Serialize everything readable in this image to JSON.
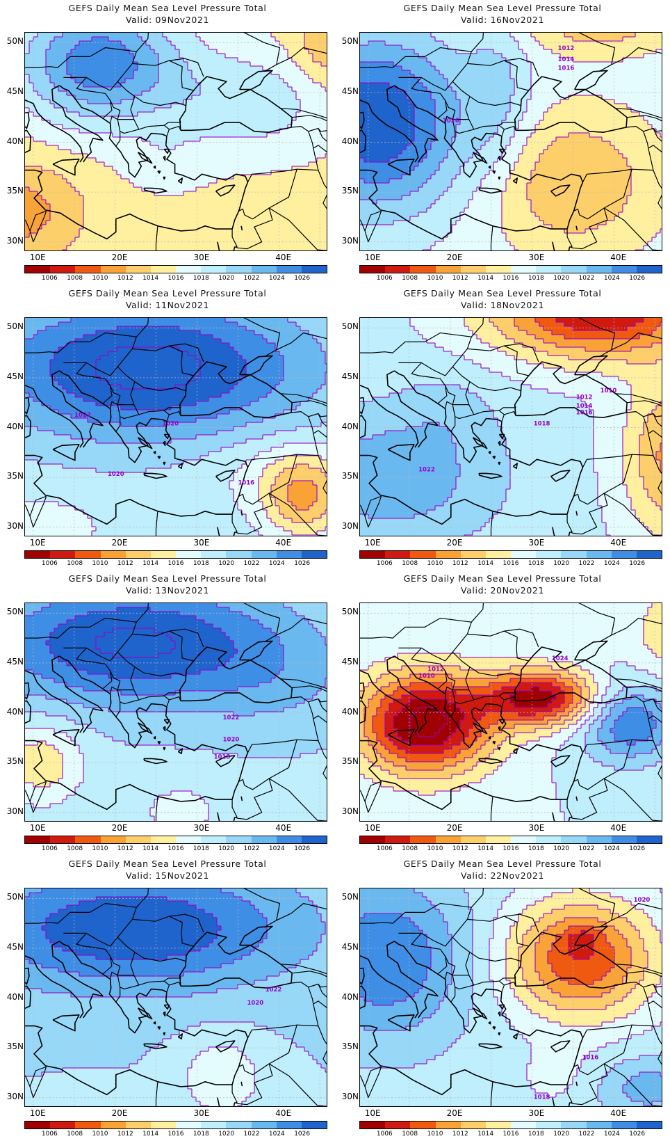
{
  "panels": [
    {
      "title": "GEFS Daily Mean Sea Level Pressure Total",
      "valid": "Valid: 09Nov2021",
      "field": "p09",
      "contour_labels": []
    },
    {
      "title": "GEFS Daily Mean Sea Level Pressure Total",
      "valid": "Valid: 16Nov2021",
      "field": "p16",
      "contour_labels": [
        "1012",
        "1014",
        "1016",
        "1026"
      ]
    },
    {
      "title": "GEFS Daily Mean Sea Level Pressure Total",
      "valid": "Valid: 11Nov2021",
      "field": "p11",
      "contour_labels": [
        "1022",
        "1020",
        "1020",
        "1016"
      ]
    },
    {
      "title": "GEFS Daily Mean Sea Level Pressure Total",
      "valid": "Valid: 18Nov2021",
      "field": "p18",
      "contour_labels": [
        "1010",
        "1012",
        "1014",
        "1016",
        "1018",
        "1022"
      ]
    },
    {
      "title": "GEFS Daily Mean Sea Level Pressure Total",
      "valid": "Valid: 13Nov2021",
      "field": "p13",
      "contour_labels": [
        "1022",
        "1020",
        "1018"
      ]
    },
    {
      "title": "GEFS Daily Mean Sea Level Pressure Total",
      "valid": "Valid: 20Nov2021",
      "field": "p20",
      "contour_labels": [
        "1012",
        "1010",
        "1024"
      ]
    },
    {
      "title": "GEFS Daily Mean Sea Level Pressure Total",
      "valid": "Valid: 15Nov2021",
      "field": "p15",
      "contour_labels": [
        "1022",
        "1020"
      ]
    },
    {
      "title": "GEFS Daily Mean Sea Level Pressure Total",
      "valid": "Valid: 22Nov2021",
      "field": "p22",
      "contour_labels": [
        "1020",
        "1016",
        "1018"
      ]
    }
  ],
  "lat_labels": [
    "50N",
    "45N",
    "40N",
    "35N",
    "30N"
  ],
  "lon_labels": [
    "10E",
    "20E",
    "30E",
    "40E"
  ],
  "colorbar": {
    "labels": [
      "1006",
      "1008",
      "1010",
      "1012",
      "1014",
      "1016",
      "1018",
      "1020",
      "1022",
      "1024",
      "1026"
    ],
    "colors": [
      "#a00000",
      "#d01a10",
      "#f05a10",
      "#f9a235",
      "#fdcf6a",
      "#fff0a0",
      "#e4fcfe",
      "#bfeefc",
      "#97d8f8",
      "#6ab8f0",
      "#3e8ee6",
      "#1e64cc"
    ]
  },
  "map_colors": {
    "coast": "#000000",
    "contour": "#9b00c8",
    "grid": "#bbbbbb",
    "label": "#9b00c8"
  }
}
